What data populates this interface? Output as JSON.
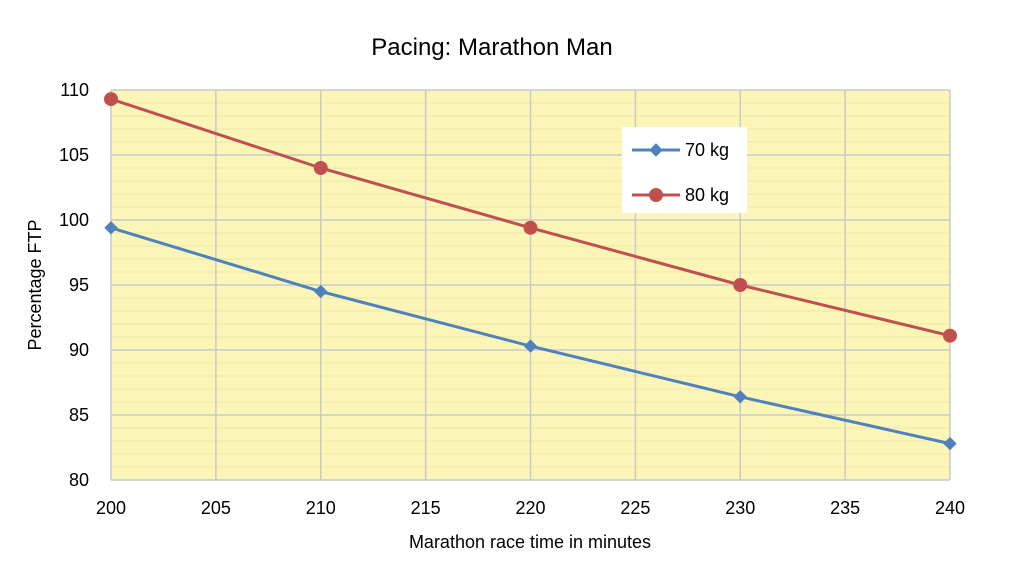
{
  "chart_data": {
    "type": "line",
    "title": "Pacing: Marathon Man",
    "xlabel": "Marathon race time in minutes",
    "ylabel": "Percentage FTP",
    "xlim": [
      200,
      240
    ],
    "ylim": [
      80,
      110
    ],
    "xticks": [
      200,
      205,
      210,
      215,
      220,
      225,
      230,
      235,
      240
    ],
    "yticks": [
      80,
      85,
      90,
      95,
      100,
      105,
      110
    ],
    "grid": true,
    "legend_position": "top-right",
    "background_color": "#fbf6b8",
    "series": [
      {
        "name": "70 kg",
        "color": "#4f81bd",
        "marker": "diamond",
        "x": [
          200,
          210,
          220,
          230,
          240
        ],
        "values": [
          99.4,
          94.5,
          90.3,
          86.4,
          82.8
        ]
      },
      {
        "name": "80 kg",
        "color": "#c0504d",
        "marker": "circle",
        "x": [
          200,
          210,
          220,
          230,
          240
        ],
        "values": [
          109.3,
          104.0,
          99.4,
          95.0,
          91.1
        ]
      }
    ]
  }
}
